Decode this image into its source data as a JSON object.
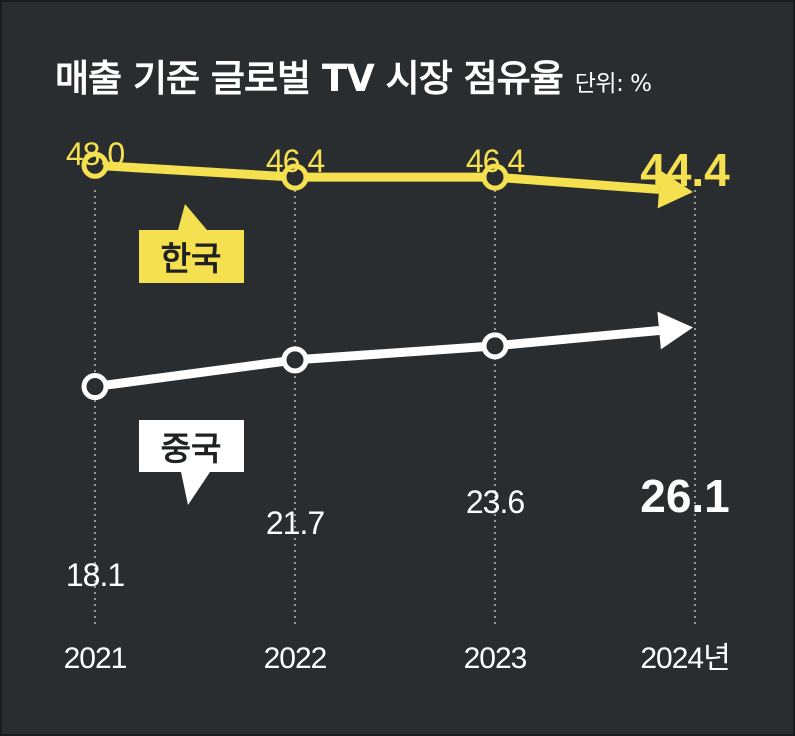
{
  "chart_data": {
    "type": "line",
    "title": "매출 기준 글로벌 TV 시장 점유율",
    "unit_label": "단위: %",
    "categories": [
      "2021",
      "2022",
      "2023",
      "2024년"
    ],
    "series": [
      {
        "name": "한국",
        "values": [
          48.0,
          46.4,
          46.4,
          44.4
        ],
        "labels": [
          "48.0",
          "46.4",
          "46.4",
          "44.4"
        ],
        "color": "#f5e04f"
      },
      {
        "name": "중국",
        "values": [
          18.1,
          21.7,
          23.6,
          26.1
        ],
        "labels": [
          "18.1",
          "21.7",
          "23.6",
          "26.1"
        ],
        "color": "#ffffff"
      }
    ],
    "grid": "vertical dotted lines",
    "last_point_style": "arrowhead"
  },
  "colors": {
    "background": "#2a2d30",
    "korea": "#f5e04f",
    "china": "#ffffff",
    "text": "#ffffff"
  }
}
